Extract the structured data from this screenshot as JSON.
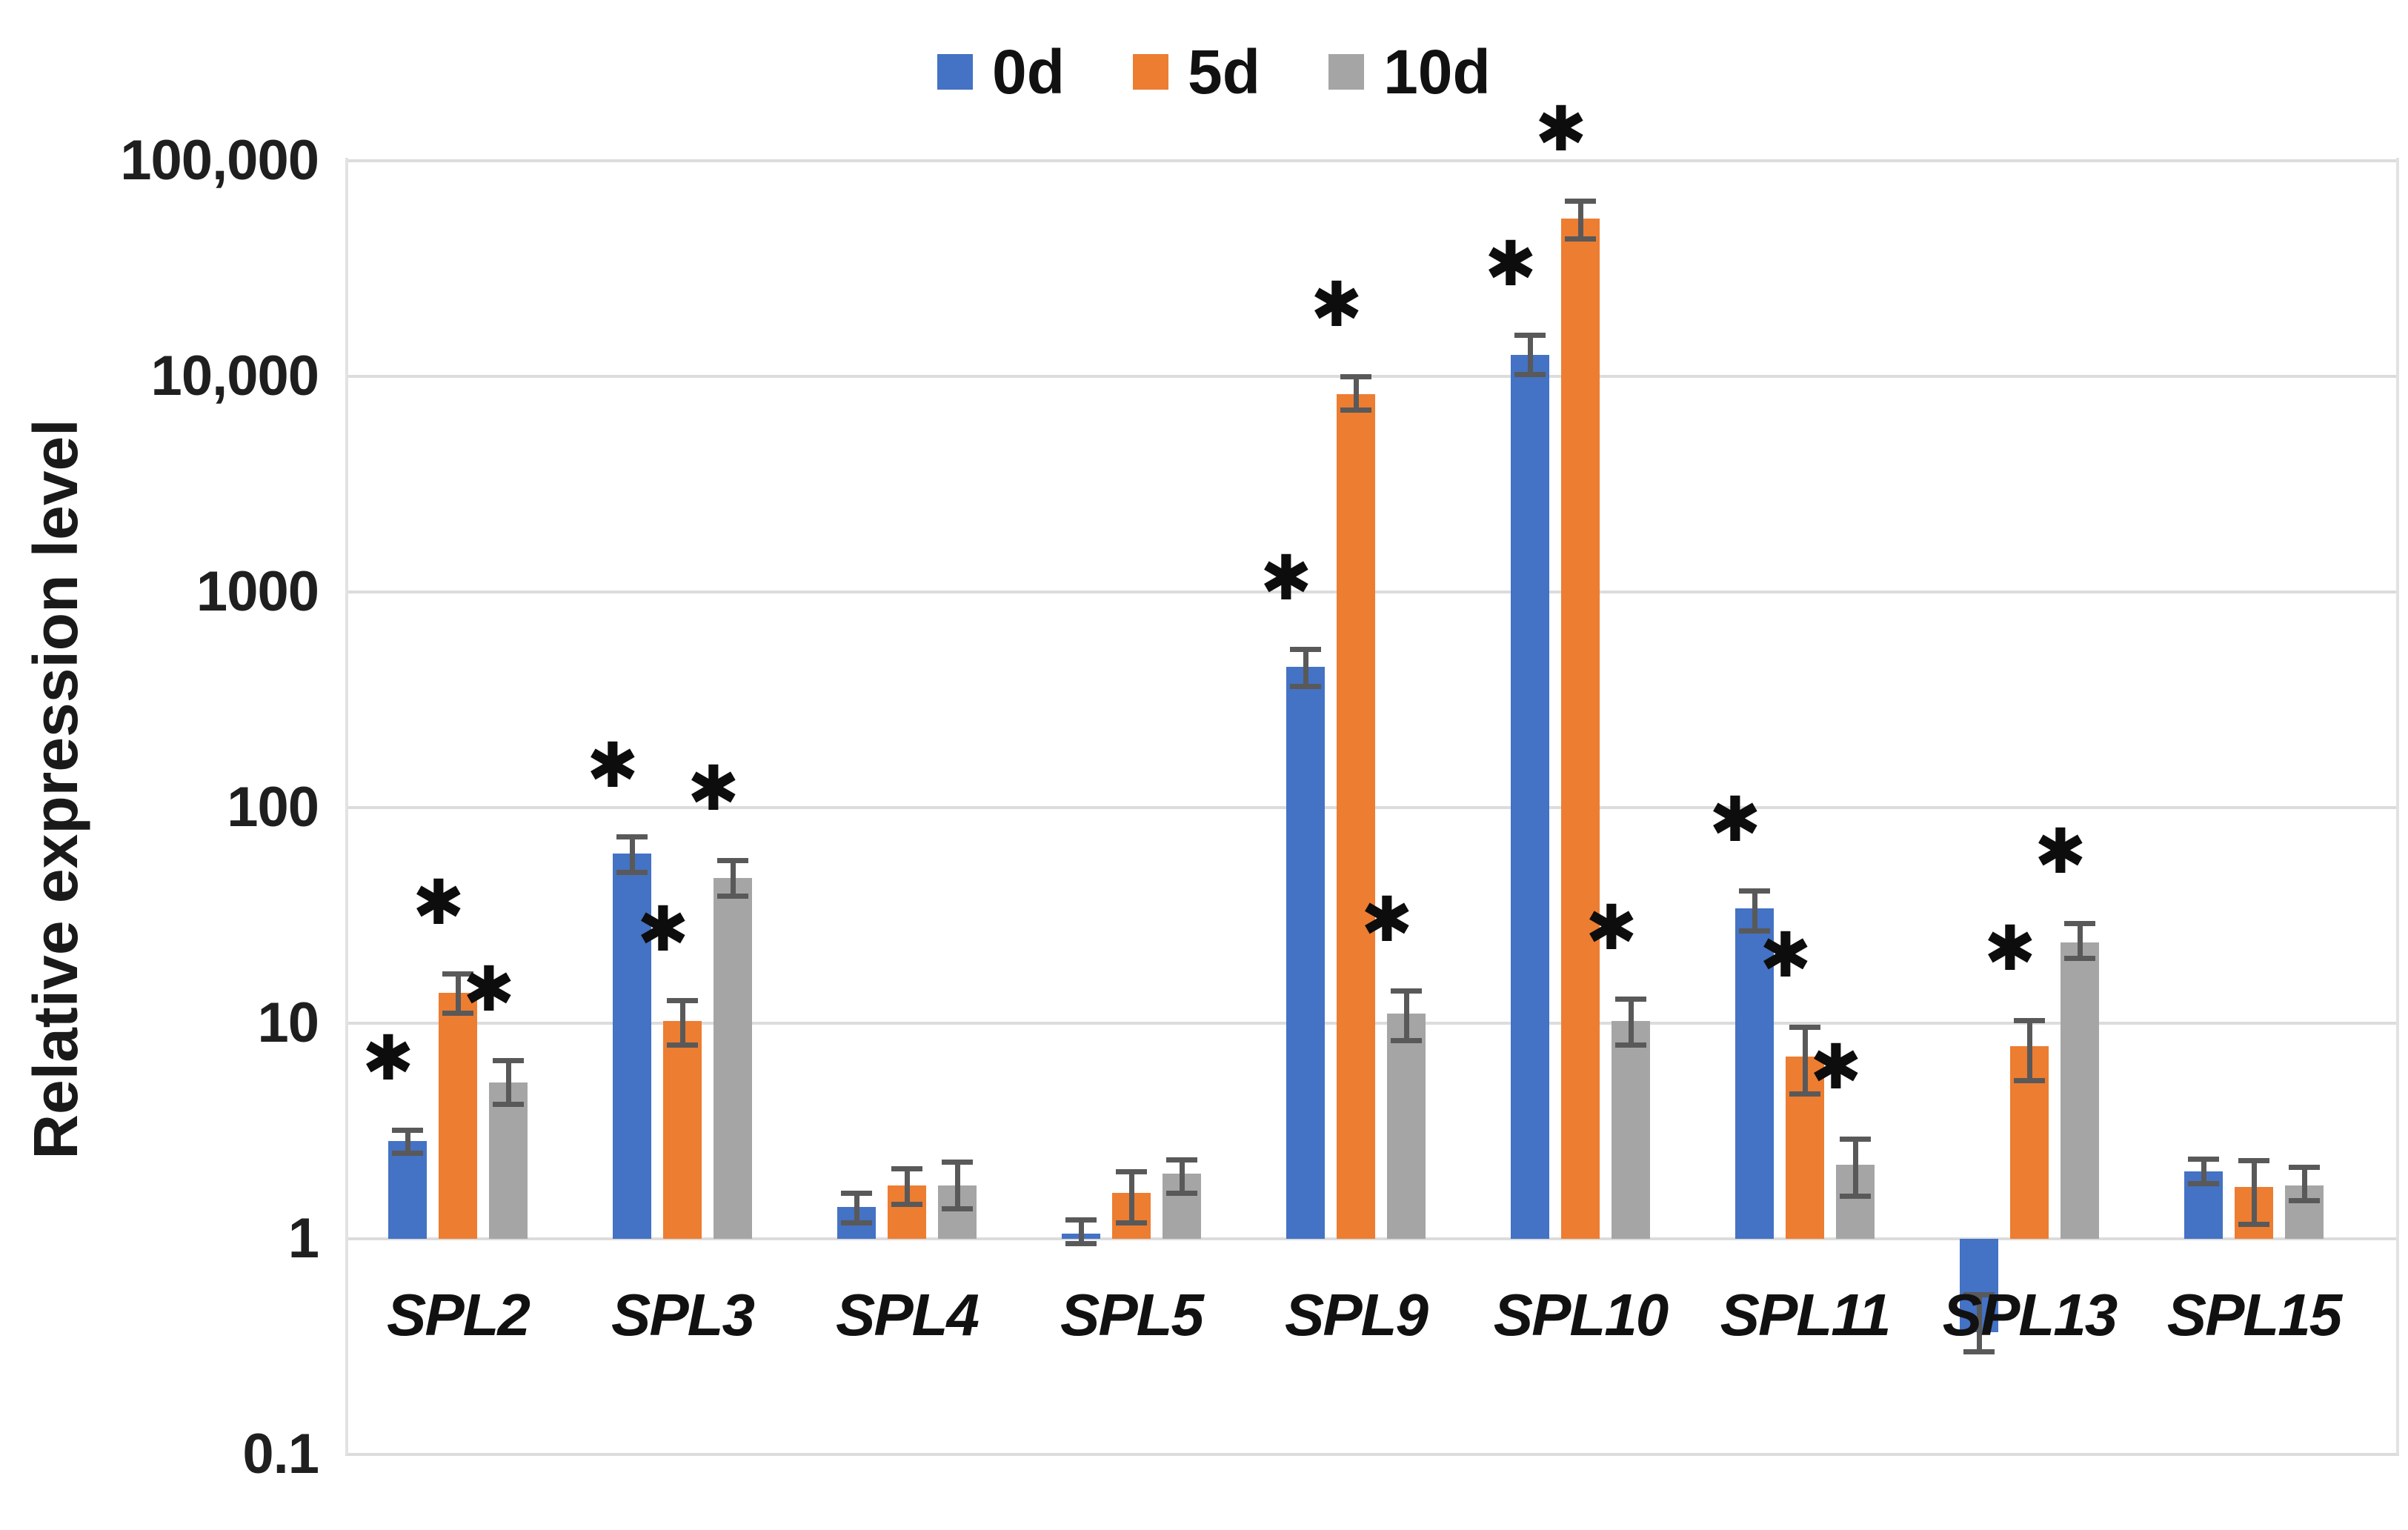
{
  "legend": {
    "items": [
      {
        "label": "0d",
        "color": "#4472C4",
        "swatch": "blue-square"
      },
      {
        "label": "5d",
        "color": "#ED7D31",
        "swatch": "orange-square"
      },
      {
        "label": "10d",
        "color": "#A5A5A5",
        "swatch": "gray-square"
      }
    ]
  },
  "y_axis": {
    "title": "Relative expression level",
    "ticks": [
      {
        "label": "100,000",
        "value": 100000
      },
      {
        "label": "10,000",
        "value": 10000
      },
      {
        "label": "1000",
        "value": 1000
      },
      {
        "label": "100",
        "value": 100
      },
      {
        "label": "10",
        "value": 10
      },
      {
        "label": "1",
        "value": 1
      },
      {
        "label": "0.1",
        "value": 0.1
      }
    ]
  },
  "significance_marker": "✱",
  "colors": {
    "series_blue": "#4472C4",
    "series_orange": "#ED7D31",
    "series_gray": "#A5A5A5",
    "error_bar": "#595959",
    "gridline": "#dcdcdc"
  },
  "chart_data": {
    "type": "bar",
    "y_scale": "log10",
    "ylim": [
      0.1,
      100000
    ],
    "baseline": 1,
    "grid": "horizontal",
    "legend_position": "top",
    "title": "",
    "xlabel": "",
    "ylabel": "Relative expression level",
    "categories": [
      "SPL2",
      "SPL3",
      "SPL4",
      "SPL5",
      "SPL9",
      "SPL10",
      "SPL11",
      "SPL13",
      "SPL15"
    ],
    "series": [
      {
        "name": "0d",
        "color": "#4472C4",
        "values": [
          2.85,
          61,
          1.4,
          1.06,
          450,
          12600,
          34,
          0.37,
          2.06
        ],
        "err_low": [
          2.5,
          50,
          1.19,
          0.95,
          366,
          10200,
          26.7,
          0.3,
          1.81
        ],
        "err_high": [
          3.2,
          73,
          1.63,
          1.22,
          540,
          15500,
          41,
          0.55,
          2.35
        ],
        "sig": [
          true,
          true,
          false,
          false,
          true,
          true,
          true,
          false,
          false
        ]
      },
      {
        "name": "5d",
        "color": "#ED7D31",
        "values": [
          13.8,
          10.2,
          1.77,
          1.63,
          8300,
          54000,
          7.0,
          7.8,
          1.74
        ],
        "err_low": [
          11.1,
          7.9,
          1.45,
          1.19,
          7000,
          43500,
          4.7,
          5.4,
          1.17
        ],
        "err_high": [
          16.9,
          12.7,
          2.12,
          2.05,
          10000,
          65000,
          9.6,
          10.3,
          2.31
        ],
        "sig": [
          true,
          true,
          false,
          false,
          true,
          true,
          true,
          true,
          false
        ]
      },
      {
        "name": "10d",
        "color": "#A5A5A5",
        "values": [
          5.3,
          47,
          1.77,
          2.0,
          11.1,
          10.2,
          2.2,
          23.7,
          1.77
        ],
        "err_low": [
          4.2,
          39,
          1.38,
          1.63,
          8.3,
          7.9,
          1.58,
          20,
          1.5
        ],
        "err_high": [
          6.7,
          57,
          2.27,
          2.33,
          14.1,
          12.9,
          2.9,
          29,
          2.14
        ],
        "sig": [
          true,
          true,
          false,
          false,
          true,
          true,
          true,
          true,
          false
        ]
      }
    ]
  }
}
